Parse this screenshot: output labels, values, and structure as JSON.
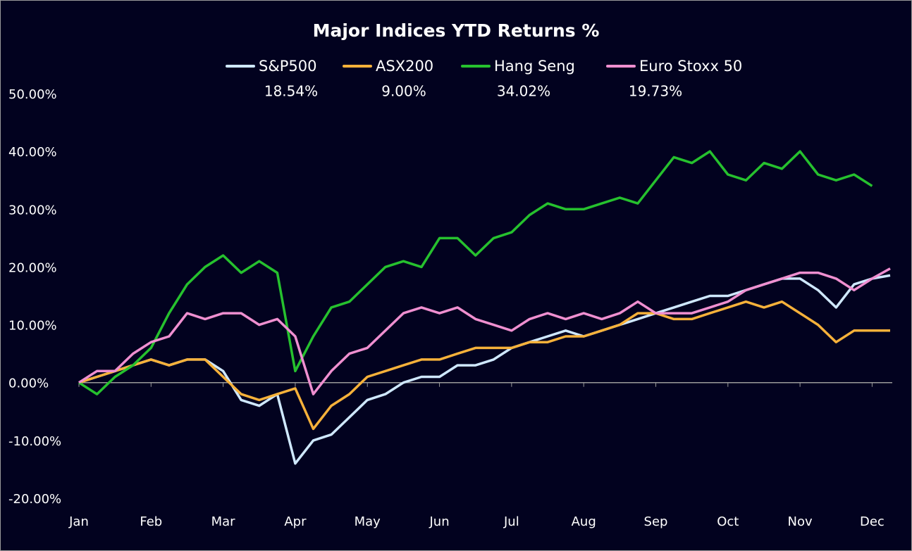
{
  "chart_data": {
    "type": "line",
    "title": "Major Indices YTD Returns %",
    "categories": [
      "Jan",
      null,
      null,
      null,
      "Feb",
      null,
      null,
      null,
      "Mar",
      null,
      null,
      null,
      "Apr",
      null,
      null,
      null,
      "May",
      null,
      null,
      null,
      "Jun",
      null,
      null,
      null,
      "Jul",
      null,
      null,
      null,
      "Aug",
      null,
      null,
      null,
      "Sep",
      null,
      null,
      null,
      "Oct",
      null,
      null,
      null,
      "Nov",
      null,
      null,
      null,
      "Dec",
      null
    ],
    "series": [
      {
        "name": "S&P500",
        "color": "#cfe8ff",
        "ytd_label": "18.54%",
        "values": [
          0,
          1,
          2,
          3,
          4,
          3,
          4,
          4,
          2,
          -3,
          -4,
          -2,
          -14,
          -10,
          -9,
          -6,
          -3,
          -2,
          0,
          1,
          1,
          3,
          3,
          4,
          6,
          7,
          8,
          9,
          8,
          9,
          10,
          11,
          12,
          13,
          14,
          15,
          15,
          16,
          17,
          18,
          18,
          16,
          13,
          17,
          18,
          18.54
        ]
      },
      {
        "name": "ASX200",
        "color": "#f6b13a",
        "ytd_label": "9.00%",
        "values": [
          0,
          1,
          2,
          3,
          4,
          3,
          4,
          4,
          1,
          -2,
          -3,
          -2,
          -1,
          -8,
          -4,
          -2,
          1,
          2,
          3,
          4,
          4,
          5,
          6,
          6,
          6,
          7,
          7,
          8,
          8,
          9,
          10,
          12,
          12,
          11,
          11,
          12,
          13,
          14,
          13,
          14,
          12,
          10,
          7,
          9,
          9,
          9.0
        ]
      },
      {
        "name": "Hang Seng",
        "color": "#26c12e",
        "ytd_label": "34.02%",
        "values": [
          0,
          -2,
          1,
          3,
          6,
          12,
          17,
          20,
          22,
          19,
          21,
          19,
          2,
          8,
          13,
          14,
          17,
          20,
          21,
          20,
          25,
          25,
          22,
          25,
          26,
          29,
          31,
          30,
          30,
          31,
          32,
          31,
          35,
          39,
          38,
          40,
          36,
          35,
          38,
          37,
          40,
          36,
          35,
          36,
          34.02,
          null
        ]
      },
      {
        "name": "Euro Stoxx 50",
        "color": "#ef8fd0",
        "ytd_label": "19.73%",
        "values": [
          0,
          2,
          2,
          5,
          7,
          8,
          12,
          11,
          12,
          12,
          10,
          11,
          8,
          -2,
          2,
          5,
          6,
          9,
          12,
          13,
          12,
          13,
          11,
          10,
          9,
          11,
          12,
          11,
          12,
          11,
          12,
          14,
          12,
          12,
          12,
          13,
          14,
          16,
          17,
          18,
          19,
          19,
          18,
          16,
          18,
          19.73
        ]
      }
    ],
    "ylim": [
      -20,
      50
    ],
    "yticks": [
      {
        "value": -20,
        "label": "-20.00%"
      },
      {
        "value": -10,
        "label": "-10.00%"
      },
      {
        "value": 0,
        "label": "0.00%"
      },
      {
        "value": 10,
        "label": "10.00%"
      },
      {
        "value": 20,
        "label": "20.00%"
      },
      {
        "value": 30,
        "label": "30.00%"
      },
      {
        "value": 40,
        "label": "40.00%"
      },
      {
        "value": 50,
        "label": "50.00%"
      }
    ],
    "grid": false
  }
}
